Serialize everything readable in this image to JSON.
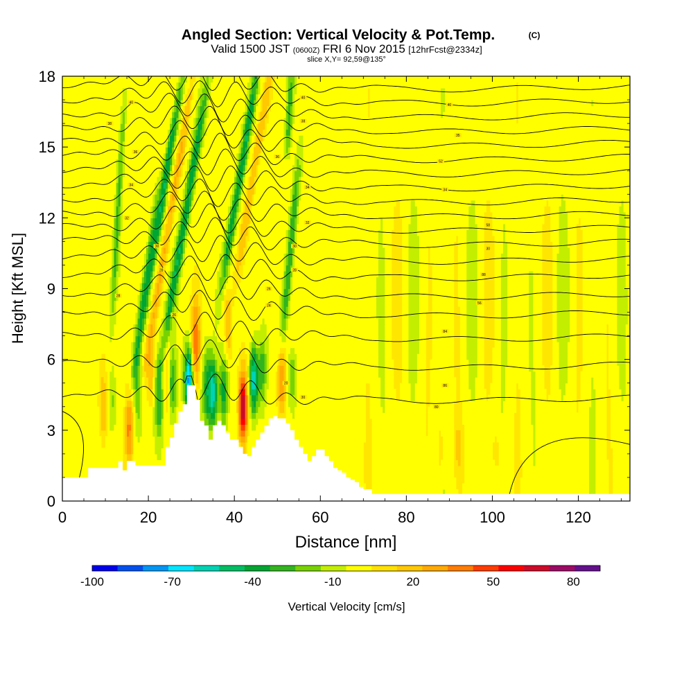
{
  "chart_data": {
    "type": "heatmap",
    "title": "Angled Section: Vertical Velocity & Pot.Temp.",
    "title_unit": "(C)",
    "subtitle": {
      "valid_prefix": "Valid 1500 JST",
      "utc": "(0600Z)",
      "date": "FRI 6 Nov 2015",
      "forecast": "[12hrFcst@2334z]"
    },
    "slice_label": "slice X,Y= 92,59@135°",
    "xlabel": "Distance [nm]",
    "ylabel": "Height [Kft MSL]",
    "xlim": [
      0,
      132
    ],
    "ylim": [
      0,
      18
    ],
    "xticks": [
      "0",
      "20",
      "40",
      "60",
      "80",
      "100",
      "120"
    ],
    "yticks": [
      "0",
      "3",
      "6",
      "9",
      "12",
      "15",
      "18"
    ],
    "colorbar": {
      "label": "Vertical Velocity [cm/s]",
      "min": -100,
      "max": 90,
      "step": 10,
      "tick_labels": [
        "-100",
        "-70",
        "-40",
        "-10",
        "20",
        "50",
        "80"
      ],
      "colors": [
        "#0000ee",
        "#0050f0",
        "#0096f5",
        "#00e6ff",
        "#00d2b4",
        "#00be64",
        "#00a532",
        "#32b41e",
        "#78d200",
        "#c3ee00",
        "#ffff00",
        "#ffe100",
        "#ffc800",
        "#ffaa00",
        "#ff7d00",
        "#ff3c00",
        "#ff0000",
        "#cd0a28",
        "#9b0a64",
        "#640f8c"
      ]
    },
    "background_value_cm_s": 5,
    "vertical_velocity_features": [
      {
        "x_nm": 9.5,
        "ybot_kft": 2.5,
        "ytop_kft": 5.5,
        "value": 32
      },
      {
        "x_nm": 11.5,
        "ybot_kft": 3.0,
        "ytop_kft": 5.5,
        "value": -12
      },
      {
        "x_nm": 15.5,
        "ybot_kft": 1.5,
        "ytop_kft": 4.8,
        "value": 42
      },
      {
        "x_nm": 17.5,
        "ybot_kft": 3.0,
        "ytop_kft": 6.5,
        "value": -22
      },
      {
        "x_nm": 20.5,
        "ybot_kft": 4.0,
        "ytop_kft": 6.8,
        "value": 26
      },
      {
        "x_nm": 22.5,
        "ybot_kft": 2.5,
        "ytop_kft": 6.0,
        "value": -30
      },
      {
        "x_nm": 24.5,
        "ybot_kft": 3.5,
        "ytop_kft": 7.0,
        "value": 28
      },
      {
        "x_nm": 25.5,
        "ybot_kft": 3.5,
        "ytop_kft": 6.5,
        "value": -35
      },
      {
        "x_nm": 29.3,
        "ybot_kft": 3.8,
        "ytop_kft": 6.5,
        "value": -72
      },
      {
        "x_nm": 31.0,
        "ybot_kft": 5.0,
        "ytop_kft": 8.5,
        "value": 48
      },
      {
        "x_nm": 33.5,
        "ybot_kft": 3.0,
        "ytop_kft": 6.5,
        "value": -30
      },
      {
        "x_nm": 35.0,
        "ybot_kft": 3.2,
        "ytop_kft": 6.0,
        "value": -55
      },
      {
        "x_nm": 37.5,
        "ybot_kft": 3.2,
        "ytop_kft": 6.0,
        "value": -35
      },
      {
        "x_nm": 42.0,
        "ybot_kft": 2.4,
        "ytop_kft": 5.5,
        "value": 82
      },
      {
        "x_nm": 44.5,
        "ybot_kft": 3.8,
        "ytop_kft": 6.5,
        "value": -60
      },
      {
        "x_nm": 46.5,
        "ybot_kft": 4.0,
        "ytop_kft": 7.0,
        "value": -25
      },
      {
        "x_nm": 51.0,
        "ybot_kft": 3.6,
        "ytop_kft": 6.8,
        "value": 42
      },
      {
        "x_nm": 53.5,
        "ybot_kft": 4.0,
        "ytop_kft": 6.5,
        "value": -18
      },
      {
        "x_nm": 88.0,
        "ybot_kft": 1.0,
        "ytop_kft": 3.5,
        "value": 20
      },
      {
        "x_nm": 92.0,
        "ybot_kft": 1.0,
        "ytop_kft": 3.5,
        "value": 20
      },
      {
        "x_nm": 101.0,
        "ybot_kft": 1.0,
        "ytop_kft": 3.0,
        "value": 18
      }
    ],
    "tilted_bands": [
      {
        "x_nm": 22.5,
        "y_kft": 12.0,
        "dx_per_kft": 0.9,
        "half_len_kft": 6.5,
        "half_w_nm": 0.9,
        "value": -40
      },
      {
        "x_nm": 25.0,
        "y_kft": 12.0,
        "dx_per_kft": 0.9,
        "half_len_kft": 6.5,
        "half_w_nm": 0.9,
        "value": 32
      },
      {
        "x_nm": 28.5,
        "y_kft": 12.0,
        "dx_per_kft": 0.9,
        "half_len_kft": 6.0,
        "half_w_nm": 1.0,
        "value": -38
      },
      {
        "x_nm": 13.0,
        "y_kft": 12.5,
        "dx_per_kft": 0.3,
        "half_len_kft": 5.0,
        "half_w_nm": 0.7,
        "value": -22
      },
      {
        "x_nm": 20.0,
        "y_kft": 10.5,
        "dx_per_kft": 0.8,
        "half_len_kft": 3.0,
        "half_w_nm": 0.7,
        "value": -18
      },
      {
        "x_nm": 41.5,
        "y_kft": 14.0,
        "dx_per_kft": 0.9,
        "half_len_kft": 5.0,
        "half_w_nm": 0.9,
        "value": -38
      },
      {
        "x_nm": 44.5,
        "y_kft": 14.0,
        "dx_per_kft": 0.9,
        "half_len_kft": 5.0,
        "half_w_nm": 0.9,
        "value": 28
      },
      {
        "x_nm": 53.0,
        "y_kft": 10.5,
        "dx_per_kft": 0.5,
        "half_len_kft": 4.0,
        "half_w_nm": 0.9,
        "value": -32
      },
      {
        "x_nm": 52.8,
        "y_kft": 16.5,
        "dx_per_kft": 0.3,
        "half_len_kft": 1.8,
        "half_w_nm": 0.7,
        "value": -25
      },
      {
        "x_nm": 38.5,
        "y_kft": 7.5,
        "dx_per_kft": -0.2,
        "half_len_kft": 1.5,
        "half_w_nm": 0.9,
        "value": 28
      }
    ],
    "terrain": {
      "x_nm": [
        0,
        5,
        6,
        7,
        12,
        13,
        14,
        15,
        17,
        24,
        25,
        26,
        27,
        28,
        29,
        30,
        31,
        32,
        33,
        34,
        35,
        36,
        37,
        38,
        39,
        40,
        41,
        42,
        43,
        44,
        45,
        46,
        47,
        48,
        49,
        50,
        51,
        52,
        53,
        54,
        55,
        56,
        57,
        58,
        59,
        60,
        61,
        62,
        63,
        64,
        65,
        66,
        67,
        68,
        69,
        70,
        72,
        132
      ],
      "height_kft": [
        1.0,
        1.0,
        1.4,
        1.4,
        1.4,
        1.7,
        1.3,
        1.7,
        1.5,
        2.3,
        2.7,
        3.3,
        3.8,
        4.1,
        4.9,
        4.9,
        4.3,
        3.4,
        3.2,
        2.6,
        3.2,
        3.4,
        3.2,
        2.9,
        2.6,
        2.6,
        2.3,
        2.0,
        1.9,
        2.3,
        2.6,
        2.9,
        3.2,
        3.5,
        3.6,
        3.5,
        3.5,
        3.3,
        3.0,
        2.6,
        2.3,
        2.0,
        1.7,
        1.9,
        2.2,
        2.2,
        1.9,
        1.7,
        1.4,
        1.3,
        1.2,
        1.0,
        0.9,
        0.8,
        0.6,
        0.5,
        0.3,
        0.3
      ]
    },
    "isentropes": {
      "base_heights_kft": [
        4.4,
        5.8,
        7.0,
        8.0,
        8.8,
        9.6,
        10.3,
        11.0,
        11.6,
        12.2,
        12.8,
        13.4,
        14.0,
        14.6,
        15.2,
        15.8,
        16.4,
        17.0,
        17.6
      ],
      "labels": [
        {
          "text": "20",
          "x_nm": 52,
          "y_kft": 5.0
        },
        {
          "text": "30",
          "x_nm": 56,
          "y_kft": 4.4
        },
        {
          "text": "80",
          "x_nm": 87,
          "y_kft": 4.0
        },
        {
          "text": "86",
          "x_nm": 89,
          "y_kft": 4.9
        },
        {
          "text": "84",
          "x_nm": 89,
          "y_kft": 7.2
        },
        {
          "text": "56",
          "x_nm": 97,
          "y_kft": 8.4
        },
        {
          "text": "88",
          "x_nm": 98,
          "y_kft": 9.6
        },
        {
          "text": "30",
          "x_nm": 99,
          "y_kft": 10.7
        },
        {
          "text": "58",
          "x_nm": 99,
          "y_kft": 11.7
        },
        {
          "text": "34",
          "x_nm": 89,
          "y_kft": 13.2
        },
        {
          "text": "52",
          "x_nm": 88,
          "y_kft": 14.4
        },
        {
          "text": "35",
          "x_nm": 92,
          "y_kft": 15.5
        },
        {
          "text": "40",
          "x_nm": 90,
          "y_kft": 16.8
        },
        {
          "text": "40",
          "x_nm": 16,
          "y_kft": 16.9
        },
        {
          "text": "38",
          "x_nm": 11,
          "y_kft": 16.0
        },
        {
          "text": "36",
          "x_nm": 17,
          "y_kft": 14.8
        },
        {
          "text": "34",
          "x_nm": 16,
          "y_kft": 13.4
        },
        {
          "text": "32",
          "x_nm": 15,
          "y_kft": 12.0
        },
        {
          "text": "30",
          "x_nm": 22,
          "y_kft": 10.8
        },
        {
          "text": "28",
          "x_nm": 23,
          "y_kft": 9.8
        },
        {
          "text": "28",
          "x_nm": 13,
          "y_kft": 8.7
        },
        {
          "text": "26",
          "x_nm": 26,
          "y_kft": 7.9
        },
        {
          "text": "40",
          "x_nm": 56,
          "y_kft": 17.1
        },
        {
          "text": "38",
          "x_nm": 56,
          "y_kft": 16.1
        },
        {
          "text": "36",
          "x_nm": 50,
          "y_kft": 14.6
        },
        {
          "text": "34",
          "x_nm": 57,
          "y_kft": 13.3
        },
        {
          "text": "32",
          "x_nm": 57,
          "y_kft": 11.8
        },
        {
          "text": "30",
          "x_nm": 54,
          "y_kft": 10.8
        },
        {
          "text": "28",
          "x_nm": 54,
          "y_kft": 9.8
        },
        {
          "text": "26",
          "x_nm": 48,
          "y_kft": 9.0
        },
        {
          "text": "24",
          "x_nm": 48,
          "y_kft": 8.3
        }
      ]
    }
  }
}
